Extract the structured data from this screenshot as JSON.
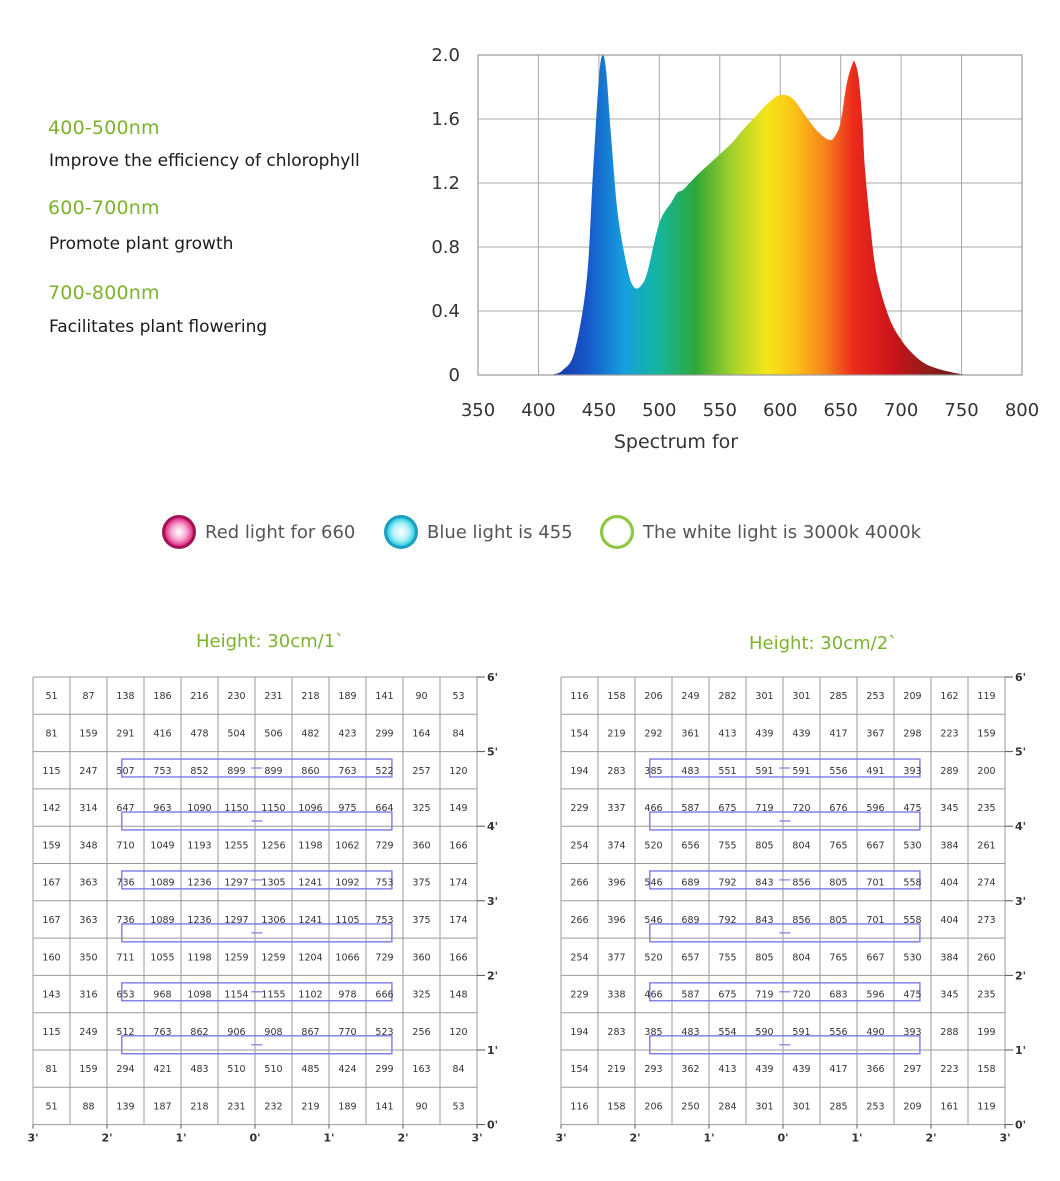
{
  "bands": [
    {
      "range": "400-500nm",
      "description": "Improve the efficiency of chlorophyll"
    },
    {
      "range": "600-700nm",
      "description": "Promote plant growth"
    },
    {
      "range": "700-800nm",
      "description": "Facilitates plant flowering"
    }
  ],
  "legend": [
    {
      "label": "Red light for 660",
      "color": "#e0197d"
    },
    {
      "label": "Blue light is 455",
      "color": "#1fc8e0"
    },
    {
      "label": "The white light is 3000k 4000k",
      "color": "#8dc63f"
    }
  ],
  "colors": {
    "accent_green": "#7ab32e",
    "grid": "#999999"
  },
  "chart_data": [
    {
      "type": "area",
      "title": "",
      "xlabel": "Spectrum for",
      "ylabel": "",
      "xlim": [
        350,
        800
      ],
      "ylim": [
        0,
        2.0
      ],
      "x_ticks": [
        350,
        400,
        450,
        500,
        550,
        600,
        650,
        700,
        750,
        800
      ],
      "y_ticks": [
        0,
        0.4,
        0.8,
        1.2,
        1.6,
        2.0
      ],
      "y_tick_labels": [
        "0",
        "0.4",
        "0.8",
        "1.2",
        "1.6",
        "2.0"
      ],
      "grid": true,
      "x": [
        410,
        420,
        430,
        440,
        445,
        450,
        453,
        456,
        460,
        465,
        470,
        475,
        478,
        481,
        485,
        490,
        500,
        510,
        515,
        520,
        530,
        540,
        550,
        560,
        570,
        580,
        590,
        600,
        610,
        620,
        630,
        640,
        645,
        650,
        655,
        660,
        662,
        665,
        668,
        670,
        675,
        680,
        690,
        700,
        710,
        720,
        730,
        740,
        750,
        760
      ],
      "y": [
        0,
        0.03,
        0.15,
        0.6,
        1.25,
        1.85,
        2.0,
        1.9,
        1.5,
        1.05,
        0.8,
        0.62,
        0.56,
        0.54,
        0.56,
        0.64,
        0.95,
        1.08,
        1.14,
        1.16,
        1.24,
        1.31,
        1.38,
        1.45,
        1.54,
        1.62,
        1.7,
        1.75,
        1.73,
        1.63,
        1.53,
        1.47,
        1.49,
        1.58,
        1.82,
        1.95,
        1.95,
        1.85,
        1.58,
        1.3,
        0.9,
        0.62,
        0.36,
        0.22,
        0.13,
        0.07,
        0.04,
        0.02,
        0.005,
        0
      ]
    },
    {
      "type": "heatmap",
      "title": "Height: 30cm/1`",
      "x_tick_labels": [
        "3'",
        "2'",
        "1'",
        "0'",
        "1'",
        "2'",
        "3'"
      ],
      "y_tick_labels": [
        "0'",
        "1'",
        "2'",
        "3'",
        "4'",
        "5'",
        "6'"
      ],
      "values": [
        [
          51,
          87,
          138,
          186,
          216,
          230,
          231,
          218,
          189,
          141,
          90,
          53
        ],
        [
          81,
          159,
          291,
          416,
          478,
          504,
          506,
          482,
          423,
          299,
          164,
          84
        ],
        [
          115,
          247,
          507,
          753,
          852,
          899,
          899,
          860,
          763,
          522,
          257,
          120
        ],
        [
          142,
          314,
          647,
          963,
          1090,
          1150,
          1150,
          1096,
          975,
          664,
          325,
          149
        ],
        [
          159,
          348,
          710,
          1049,
          1193,
          1255,
          1256,
          1198,
          1062,
          729,
          360,
          166
        ],
        [
          167,
          363,
          736,
          1089,
          1236,
          1297,
          1305,
          1241,
          1092,
          753,
          375,
          174
        ],
        [
          167,
          363,
          736,
          1089,
          1236,
          1297,
          1306,
          1241,
          1105,
          753,
          375,
          174
        ],
        [
          160,
          350,
          711,
          1055,
          1198,
          1259,
          1259,
          1204,
          1066,
          729,
          360,
          166
        ],
        [
          143,
          316,
          653,
          968,
          1098,
          1154,
          1155,
          1102,
          978,
          666,
          325,
          148
        ],
        [
          115,
          249,
          512,
          763,
          862,
          906,
          908,
          867,
          770,
          523,
          256,
          120
        ],
        [
          81,
          159,
          294,
          421,
          483,
          510,
          510,
          485,
          424,
          299,
          163,
          84
        ],
        [
          51,
          88,
          139,
          187,
          218,
          231,
          232,
          219,
          189,
          141,
          90,
          53
        ]
      ]
    },
    {
      "type": "heatmap",
      "title": "Height: 30cm/2`",
      "x_tick_labels": [
        "3'",
        "2'",
        "1'",
        "0'",
        "1'",
        "2'",
        "3'"
      ],
      "y_tick_labels": [
        "0'",
        "1'",
        "2'",
        "3'",
        "4'",
        "5'",
        "6'"
      ],
      "values": [
        [
          116,
          158,
          206,
          249,
          282,
          301,
          301,
          285,
          253,
          209,
          162,
          119
        ],
        [
          154,
          219,
          292,
          361,
          413,
          439,
          439,
          417,
          367,
          298,
          223,
          159
        ],
        [
          194,
          283,
          385,
          483,
          551,
          591,
          591,
          556,
          491,
          393,
          289,
          200
        ],
        [
          229,
          337,
          466,
          587,
          675,
          719,
          720,
          676,
          596,
          475,
          345,
          235
        ],
        [
          254,
          374,
          520,
          656,
          755,
          805,
          804,
          765,
          667,
          530,
          384,
          261
        ],
        [
          266,
          396,
          546,
          689,
          792,
          843,
          856,
          805,
          701,
          558,
          404,
          274
        ],
        [
          266,
          396,
          546,
          689,
          792,
          843,
          856,
          805,
          701,
          558,
          404,
          273
        ],
        [
          254,
          377,
          520,
          657,
          755,
          805,
          804,
          765,
          667,
          530,
          384,
          260
        ],
        [
          229,
          338,
          466,
          587,
          675,
          719,
          720,
          683,
          596,
          475,
          345,
          235
        ],
        [
          194,
          283,
          385,
          483,
          554,
          590,
          591,
          556,
          490,
          393,
          288,
          199
        ],
        [
          154,
          219,
          293,
          362,
          413,
          439,
          439,
          417,
          366,
          297,
          223,
          158
        ],
        [
          116,
          158,
          206,
          250,
          284,
          301,
          301,
          285,
          253,
          209,
          161,
          119
        ]
      ]
    }
  ]
}
